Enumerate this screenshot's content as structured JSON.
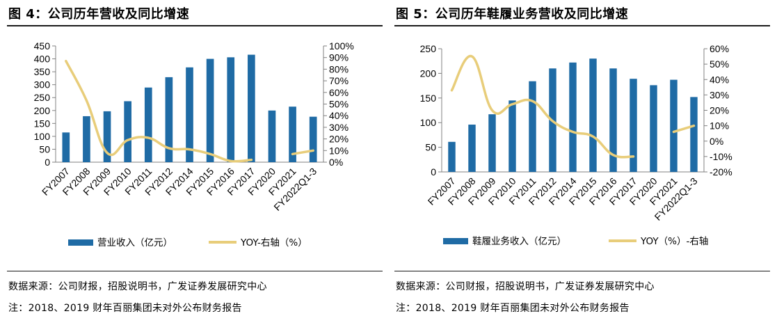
{
  "colors": {
    "bar": "#1f6ba5",
    "line": "#e8cd7a",
    "axis": "#808080"
  },
  "charts": [
    {
      "title": "图 4：公司历年营收及同比增速",
      "chart_data": {
        "type": "bar",
        "categories": [
          "FY2007",
          "FY2008",
          "FY2009",
          "FY2010",
          "FY2011",
          "FY2012",
          "FY2014",
          "FY2015",
          "FY2016",
          "FY2017",
          "FY2020",
          "FY2021",
          "FY2022Q1-3"
        ],
        "series": [
          {
            "name": "营业收入（亿元）",
            "type": "bar",
            "axis": "left",
            "values": [
              115,
              178,
              197,
              236,
              289,
              329,
              367,
              400,
              406,
              416,
              200,
              215,
              176
            ]
          },
          {
            "name": "YOY-右轴（%）",
            "type": "line",
            "axis": "right",
            "values": [
              87,
              53,
              8,
              19,
              21,
              12,
              11,
              7,
              1,
              2,
              null,
              7,
              10
            ]
          }
        ],
        "yLeft": {
          "min": 0,
          "max": 450,
          "step": 50,
          "ticks": [
            "0",
            "50",
            "100",
            "150",
            "200",
            "250",
            "300",
            "350",
            "400",
            "450"
          ]
        },
        "yRight": {
          "min": 0,
          "max": 100,
          "step": 10,
          "ticks": [
            "0%",
            "10%",
            "20%",
            "30%",
            "40%",
            "50%",
            "60%",
            "70%",
            "80%",
            "90%",
            "100%"
          ]
        },
        "legend": "bottom-center"
      },
      "source": "数据来源：公司财报，招股说明书，广发证券发展研究中心",
      "annotation": "注：2018、2019 财年百丽集团未对外公布财务报告"
    },
    {
      "title": "图 5：公司历年鞋履业务营收及同比增速",
      "chart_data": {
        "type": "bar",
        "categories": [
          "FY2007",
          "FY2008",
          "FY2009",
          "FY2010",
          "FY2011",
          "FY2012",
          "FY2014",
          "FY2015",
          "FY2016",
          "FY2017",
          "FY2020",
          "FY2021",
          "FY2022Q1-3"
        ],
        "series": [
          {
            "name": "鞋履业务收入（亿元）",
            "type": "bar",
            "axis": "left",
            "values": [
              61,
              96,
              117,
              145,
              184,
              210,
              222,
              230,
              210,
              189,
              176,
              187,
              152
            ]
          },
          {
            "name": "YOY（%）-右轴",
            "type": "line",
            "axis": "right",
            "values": [
              33,
              55,
              20,
              24,
              26,
              13,
              6,
              3,
              -9,
              -10,
              null,
              6,
              10
            ]
          }
        ],
        "yLeft": {
          "min": 0,
          "max": 250,
          "step": 50,
          "ticks": [
            "0",
            "50",
            "100",
            "150",
            "200",
            "250"
          ]
        },
        "yRight": {
          "min": -20,
          "max": 60,
          "step": 10,
          "ticks": [
            "-20%",
            "-10%",
            "0%",
            "10%",
            "20%",
            "30%",
            "40%",
            "50%",
            "60%"
          ]
        },
        "legend": "bottom-center"
      },
      "source": "数据来源：公司财报，招股说明书，广发证券发展研究中心",
      "annotation": "注：2018、2019 财年百丽集团未对外公布财务报告"
    }
  ]
}
